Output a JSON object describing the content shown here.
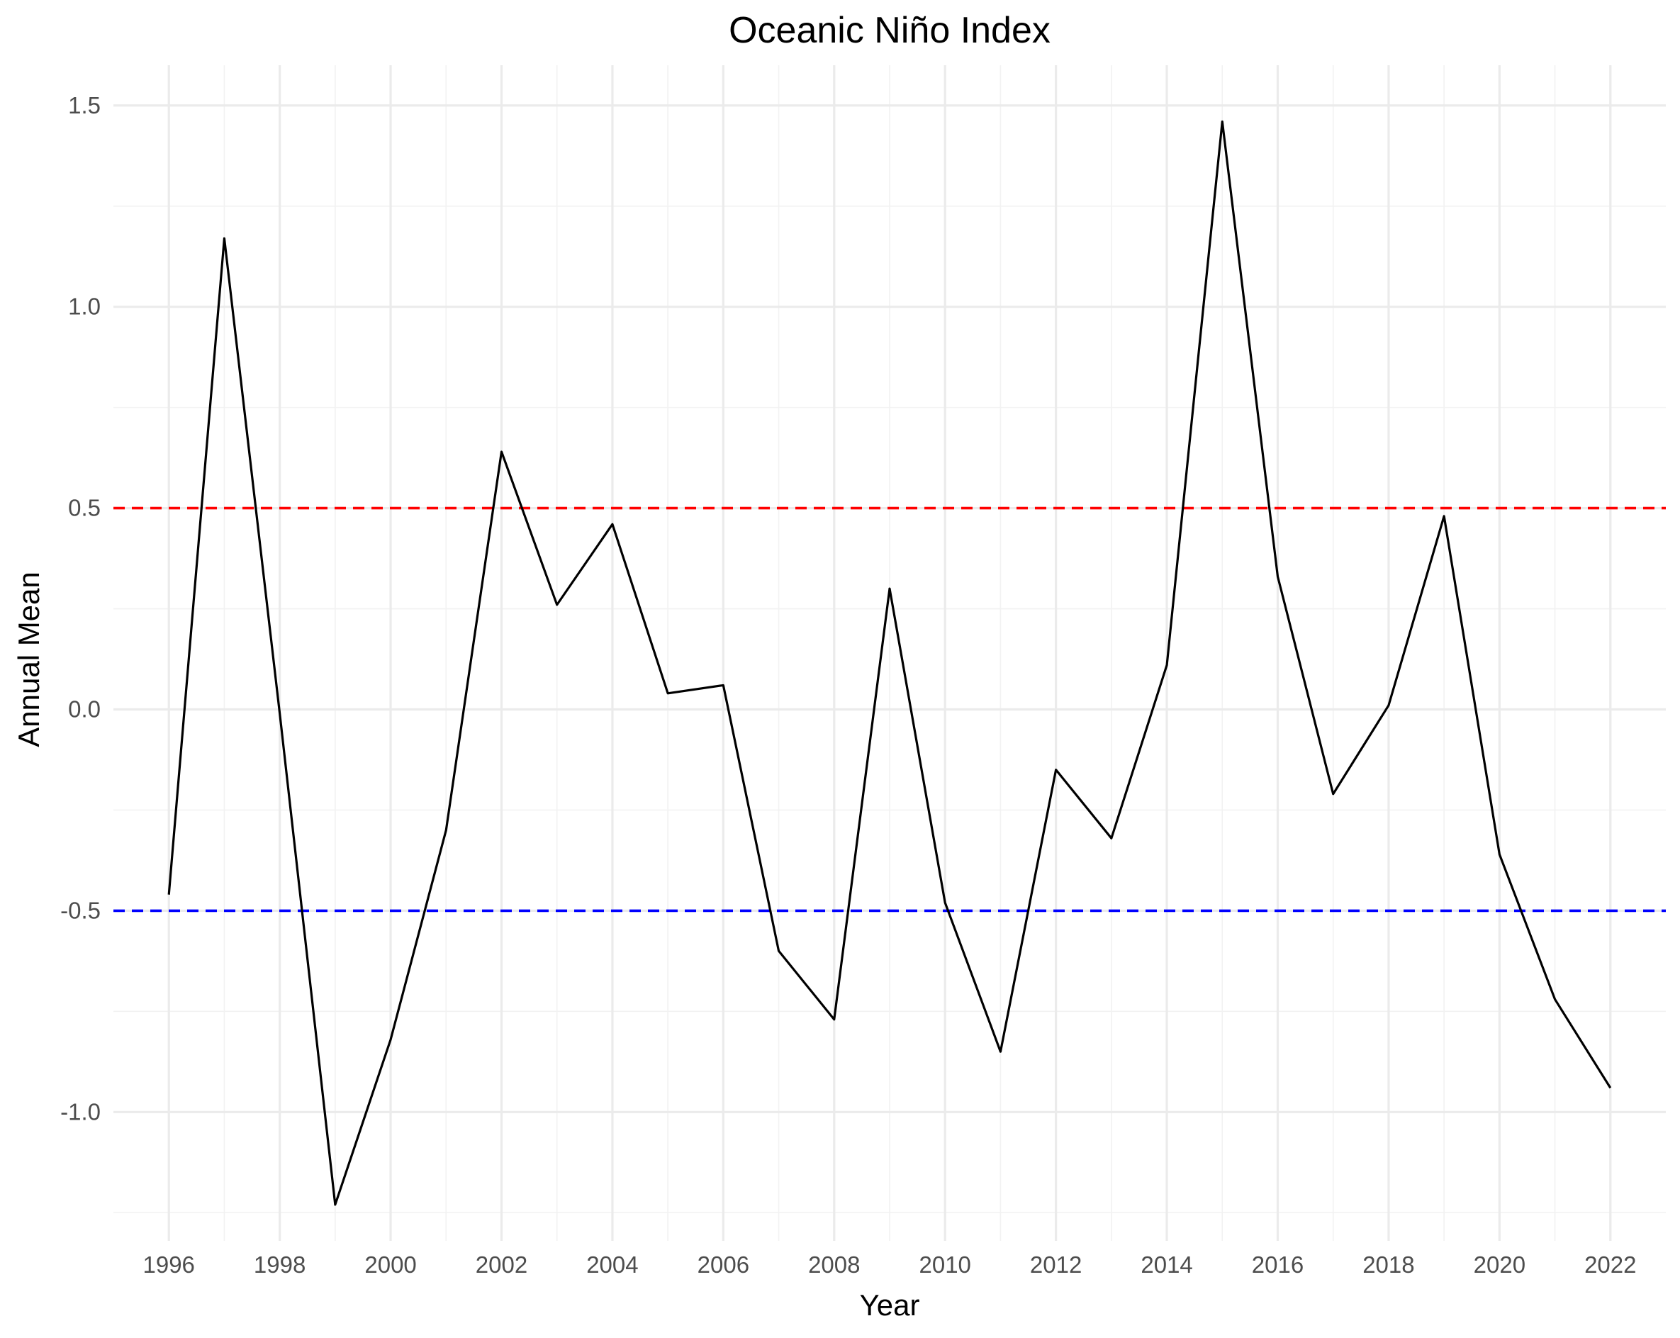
{
  "chart_data": {
    "type": "line",
    "title": "Oceanic Niño Index",
    "xlabel": "Year",
    "ylabel": "Annual Mean",
    "x": [
      1996,
      1997,
      1998,
      1999,
      2000,
      2001,
      2002,
      2003,
      2004,
      2005,
      2006,
      2007,
      2008,
      2009,
      2010,
      2011,
      2012,
      2013,
      2014,
      2015,
      2016,
      2017,
      2018,
      2019,
      2020,
      2021,
      2022
    ],
    "series": [
      {
        "values": [
          -0.46,
          1.17,
          -0.01,
          -1.23,
          -0.82,
          -0.3,
          0.64,
          0.26,
          0.46,
          0.04,
          0.06,
          -0.6,
          -0.77,
          0.3,
          -0.48,
          -0.85,
          -0.15,
          -0.32,
          0.11,
          1.46,
          0.33,
          -0.21,
          0.01,
          0.48,
          -0.36,
          -0.72,
          -0.94
        ],
        "color": "#000000"
      }
    ],
    "reference_lines": [
      {
        "y": 0.5,
        "color": "#ff0000",
        "style": "dashed"
      },
      {
        "y": -0.5,
        "color": "#0000ff",
        "style": "dashed"
      }
    ],
    "xlim": [
      1995,
      2023
    ],
    "ylim": [
      -1.32,
      1.6
    ],
    "x_ticks": [
      "1996",
      "1998",
      "2000",
      "2002",
      "2004",
      "2006",
      "2008",
      "2010",
      "2012",
      "2014",
      "2016",
      "2018",
      "2020",
      "2022"
    ],
    "y_ticks": [
      "-1.0",
      "-0.5",
      "0.0",
      "0.5",
      "1.0",
      "1.5"
    ],
    "grid": true,
    "legend": "none",
    "background": "#ffffff"
  }
}
